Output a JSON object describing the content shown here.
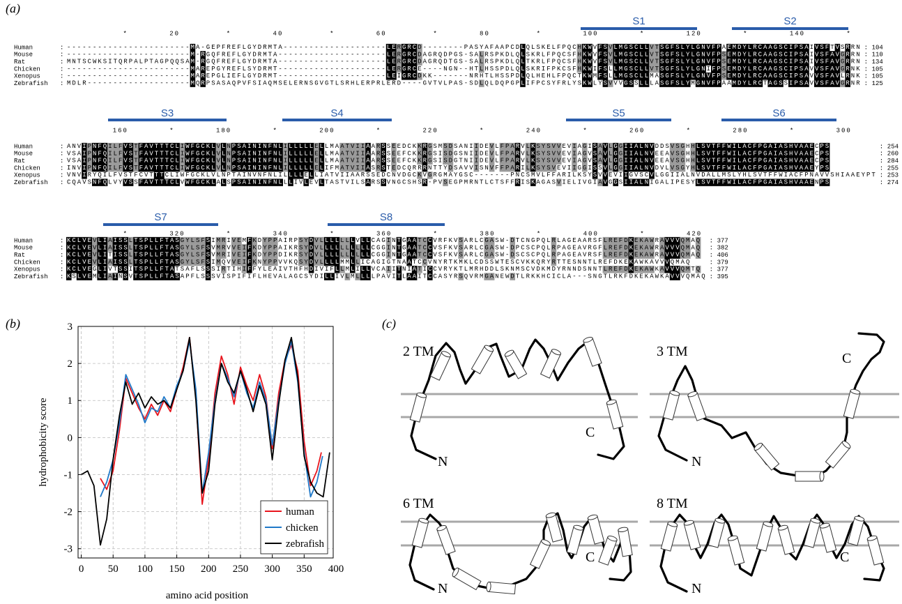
{
  "alignment": {
    "label": "(a)",
    "separator": ":",
    "blocks": [
      {
        "ruler": "           *        20         *        40         *        60         *        80         *        100        *        120        *        140        *",
        "segments": [
          "S1",
          "S2"
        ],
        "rows": [
          {
            "name": "Human",
            "sequence": "------------------------MA-GEPFREFLGYDRMTA--------------------LERGRCD--------PASYAFAAPCDLQLSKELFPQCHKWVFSVLMGSCLLVTSGFSLYLGNVFPAEMDYLRCAAGSCIPSAIVSFTVSRRN",
            "end": "104"
          },
          {
            "name": "Mouse",
            "sequence": "------------------------M-RGQFREFLGYDRMTA---------------------LERGRCDAGRQDPGS-SALRSPKDLQLSKRLFPQCSFHKWVFSVLMGSCLLVTSGFSLYLGNVFPSEMDYLRCAAGSCIPSAIVSFAVGRRN",
            "end": "110"
          },
          {
            "name": "Rat",
            "sequence": "MNTSCWKSITQRPALPTAGPQQSAM-RGQFREFLGYDRMTA---------------------LERGRCDAGRQDTGS-SALRSPKDLQLTKRLFPQCSFHKWVFSVLMGSCLLVTSGFSLYLGNVFPSEMDYLRCAAGSCIPSAIVSFAVGRRN",
            "end": "134"
          },
          {
            "name": "Chicken",
            "sequence": "------------------------MAREPGYREFLSYDRMT---------------------LERGRCE----NGN--HTLHSSPDLQLSKRIFPKCSFHKWIFSLLMGSCLLVTSGFSLYLGNIFPSEMDYLRCAAGSCIPSAVVSFAVGRNK",
            "end": "105"
          },
          {
            "name": "Xenopus",
            "sequence": "------------------------MAREPGLIEFLGYDRMT---------------------LEIGRCDKK-------NRHTLHSSPDLQLHEHLFPQCTKWMFSLLMGSCLLMASGFSLYLGNVFPSEMDYLRCAAGSCIPSAVVSFAVLRNK",
            "end": "105"
          },
          {
            "name": "Zebrafish",
            "sequence": "MDLR--------------------MQRPSASAQPVFSIAQMSELERNSGVGTLSRHLERPRLERD----GVTVLPAS-SDLQLDQPGPLIFPCSYFRLYSKWLYSVVVGSSLLLASGFSLYMGNVFPAAMDYLRCTAGSSIPSAVVSFAVGRNR",
            "end": "125"
          }
        ]
      },
      {
        "ruler": "         160        *        180        *        200        *        220        *        240        *        260        *        280        *        300",
        "segments": [
          "S3",
          "S4",
          "S5",
          "S6"
        ],
        "rows": [
          {
            "name": "Human",
            "sequence": "ANVIPNFQILFVSTFAVTTTCLIWFGCKLVLNPSAININFNLILLLLLELLMAATVIIAARSSEEDCKKRGSMSDSANIIDEVLFPARVLKSYSVVEVIAGISAVLGGIIALNVDDSVSGHHLSVTFFWILACFPGAIASHVAAECPS",
            "end": "254"
          },
          {
            "name": "Mouse",
            "sequence": "VSAIPNFQILFVSTFAVTTTCLIWFGCKLVLNPSAININFNLILLLLLELLMAATVIIAARSSEEFCKKRGSISDGSNIIDEVLFPARVLKSYSVVEVIAGVSAVLGGIIALNVEEAVSGHHLSVTFFWILACFPGAIASHVAAECPS",
            "end": "260"
          },
          {
            "name": "Rat",
            "sequence": "VSAIPNFQILFVSTFAVTTTCLIWFGCKLVLNPSAININFNLILLLLLELLMAATVIIAARSSEEFCKKRGSISDGTNIIDEVLFPARVLKSYSVVEVIAGVSAVLGGIIALNVEEAVSGHHLSVTFFWILACFPGAIASHVAAECPS",
            "end": "284"
          },
          {
            "name": "Chicken",
            "sequence": "INVIPNFQILFVSTFAVTTTCLIWFGCKLVLNPSAININFNLILLLLLELIFMATVIIASRSTEDCQRRRNTTYDSAVVISNVFFPARILKSYSVEVIIGGISSVLGGIIALNVDVLVSGYHLSVTFFWILACFPGAIASHVAAEYPS",
            "end": "255"
          },
          {
            "name": "Xenopus",
            "sequence": "VNVIRYQILFVSTFCVTTTCLIWFGCKLVLNPTAINVNFNLILLLLELLIATVIIAARSSEDCNVDGCKVGRGMAYGSC-------PNCSMVLFFARILKSYSVVEVIIGVSCVLGGIIALNVDALLMSLYHLSVTFFWIACFPNAVVSHIAAEYPT",
            "end": "253"
          },
          {
            "name": "Zebrafish",
            "sequence": "CQAVSNFQLVYVSSFAVTTTCLVWFGCKLALSPSAININFNLLLIVLEVLTASTVILSARSSVNGCSHSR-PVSEGPMRNTLCTSFFRISKAGASVIELIVGIAVGGSIIALNIGALIPESYLSVTFFWILACFPGAIASHVAAENPS",
            "end": "274"
          }
        ]
      },
      {
        "ruler": "           *        320        *        340        *        360        *        380        *        400        *        420",
        "segments": [
          "S7",
          "S8"
        ],
        "rows": [
          {
            "name": "Human",
            "sequence": "KCLVEVLIAISSLTSPLLFTASGYLSFSIMRIVEMFKDYPPAIRPSYDVLLLLLLLVLLCAGINTGAATCCVRFKVSARLCGASW-DTCNGPQLRLAGEAARSFLREFDKEKAWRAVVVQMAQ",
            "end": "377"
          },
          {
            "name": "Mouse",
            "sequence": "KCLVEVLIAISSLTSPLLFTASGYLSFSVMRVVEIFKDYPPAIKRSYDVLLLLLLLLLLCGGINTGAATCCVSFKVSARLCGASW-DPCSCPQLRPAGEAVRGFLREFDKEKAWRAVVVQMAQ",
            "end": "382"
          },
          {
            "name": "Rat",
            "sequence": "KCLVEVLITISSLTSPLLFTASGYLSFSVMRIVEIFKDYPPDIKRSYDVLLLLLLLLLLCGGINTGAATCCVSFKVSARLCGASW-DSCSCPQLRPAGEAVRSFLREFDKEKAWRAVVVQMAQ",
            "end": "406"
          },
          {
            "name": "Chicken",
            "sequence": "KCLVEVLIAISSLTSPLLFTASGYLSFSIMQVVEIFKNYPPVVKQSYDVLLLLMMLLICAGIGTNAATCCVNYRTKMKLCDSSWTESCVKKQRYRTTESNNTLREFDKEKAWKAVVVQMAQ",
            "end": "379"
          },
          {
            "name": "Xenopus",
            "sequence": "KCLVEGLIVTSSITSPLLFTATSAFLSSSIRTIHIFFYLEAIVTHFHDIVIFLLMLILLVCAIITNIATICCVRYKTLMRHDDLSKNMSCVDKMDYRNNDSNNTLREFDKEKAWKAVVVQMTQ",
            "end": "377"
          },
          {
            "name": "Zebrafish",
            "sequence": "KSLVEMLIAINSVTSPLLFTASAPFLSSSVISPIFIFLHEVALAGCSYDILLIVLMLLLLPAVITLAAITCCASYRSQVRMGANEWDTLRKKHCICLA---SNGTLRKFDKEKAWKAVVVQMAQ",
            "end": "395"
          }
        ]
      }
    ]
  },
  "chart_data": {
    "type": "line",
    "panel_label": "(b)",
    "x_label": "amino acid position",
    "y_label": "hydrophobicity score",
    "xlim": [
      -5,
      400
    ],
    "ylim": [
      -3.25,
      3
    ],
    "xticks": [
      0,
      50,
      100,
      150,
      200,
      250,
      300,
      350,
      400
    ],
    "yticks": [
      -3,
      -2,
      -1,
      0,
      1,
      2,
      3
    ],
    "grid": true,
    "legend": "lower right",
    "series": [
      {
        "name": "human",
        "color": "#e8141c",
        "x": [
          30,
          40,
          50,
          60,
          70,
          80,
          90,
          100,
          110,
          120,
          130,
          140,
          150,
          160,
          170,
          180,
          190,
          200,
          210,
          220,
          230,
          240,
          250,
          260,
          270,
          280,
          290,
          300,
          310,
          320,
          330,
          340,
          350,
          360,
          370,
          377
        ],
        "values": [
          -1.1,
          -1.4,
          -0.9,
          0.2,
          1.6,
          1.2,
          0.8,
          0.5,
          0.9,
          0.6,
          1.0,
          0.7,
          1.3,
          1.9,
          2.7,
          1.1,
          -1.8,
          -0.6,
          1.2,
          2.2,
          1.7,
          0.9,
          1.9,
          1.4,
          1.0,
          1.7,
          1.1,
          -0.3,
          1.2,
          2.1,
          2.5,
          1.8,
          -0.1,
          -1.3,
          -0.9,
          -0.4
        ]
      },
      {
        "name": "chicken",
        "color": "#1f78c8",
        "x": [
          30,
          40,
          50,
          60,
          70,
          80,
          90,
          100,
          110,
          120,
          130,
          140,
          150,
          160,
          170,
          180,
          190,
          200,
          210,
          220,
          230,
          240,
          250,
          260,
          270,
          280,
          290,
          300,
          310,
          320,
          330,
          340,
          350,
          360,
          370,
          379
        ],
        "values": [
          -1.6,
          -1.2,
          -0.6,
          0.4,
          1.7,
          1.3,
          0.9,
          0.4,
          0.8,
          0.7,
          1.1,
          0.8,
          1.4,
          1.8,
          2.6,
          1.3,
          -1.5,
          -0.4,
          1.0,
          2.0,
          1.6,
          1.1,
          1.8,
          1.2,
          0.8,
          1.5,
          1.0,
          -0.2,
          1.0,
          2.0,
          2.6,
          1.5,
          -0.4,
          -1.6,
          -1.2,
          -0.5
        ]
      },
      {
        "name": "zebrafish",
        "color": "#000000",
        "x": [
          0,
          10,
          20,
          30,
          40,
          50,
          60,
          70,
          80,
          90,
          100,
          110,
          120,
          130,
          140,
          150,
          160,
          170,
          180,
          190,
          200,
          210,
          220,
          230,
          240,
          250,
          260,
          270,
          280,
          290,
          300,
          310,
          320,
          330,
          340,
          350,
          360,
          370,
          380,
          390
        ],
        "values": [
          -1.0,
          -0.9,
          -1.3,
          -2.9,
          -2.2,
          -0.6,
          0.6,
          1.5,
          0.9,
          1.2,
          0.8,
          1.1,
          0.9,
          1.0,
          0.8,
          1.3,
          1.8,
          2.7,
          1.0,
          -1.5,
          -0.9,
          0.9,
          2.0,
          1.5,
          1.2,
          1.8,
          1.3,
          0.7,
          1.4,
          0.9,
          -0.6,
          0.9,
          2.1,
          2.7,
          1.6,
          -0.5,
          -1.2,
          -1.5,
          -1.6,
          -0.4
        ]
      }
    ]
  },
  "topology": {
    "label": "(c)",
    "models": [
      {
        "title": "2 TM",
        "n": "N",
        "c": "C"
      },
      {
        "title": "3 TM",
        "n": "N",
        "c": "C"
      },
      {
        "title": "6 TM",
        "n": "N",
        "c": "C"
      },
      {
        "title": "8 TM",
        "n": "N",
        "c": "C"
      }
    ]
  }
}
